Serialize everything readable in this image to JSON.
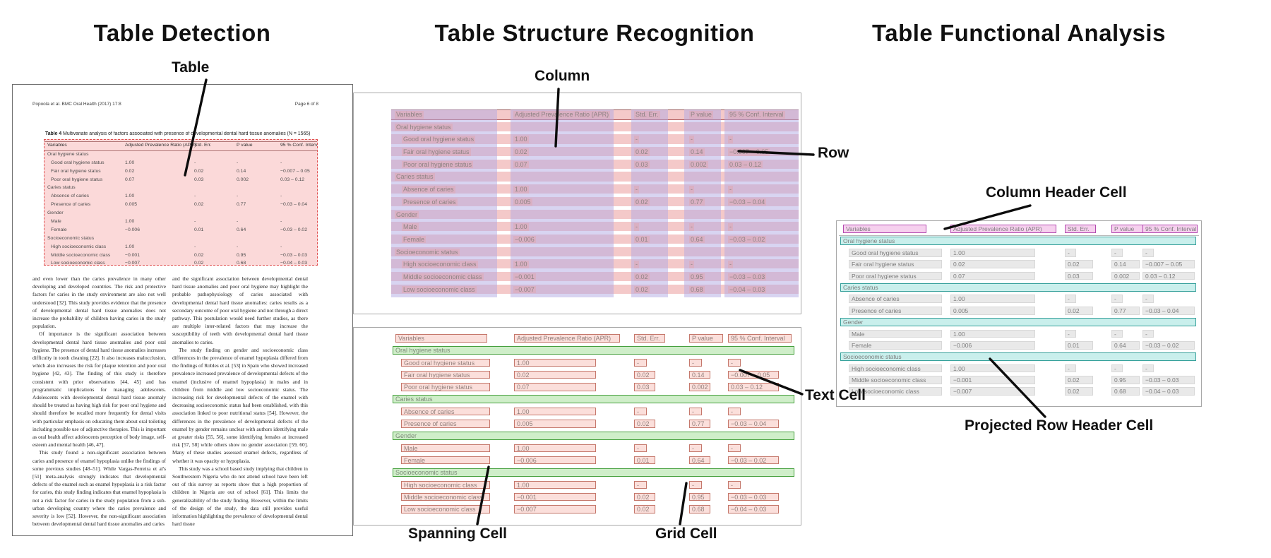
{
  "titles": {
    "detection": "Table Detection",
    "structure": "Table Structure Recognition",
    "functional": "Table Functional Analysis"
  },
  "callouts": {
    "table": "Table",
    "column": "Column",
    "row": "Row",
    "spanning_cell": "Spanning Cell",
    "text_cell": "Text Cell",
    "grid_cell": "Grid Cell",
    "column_header_cell": "Column Header Cell",
    "projected_row_header_cell": "Projected Row Header Cell"
  },
  "document": {
    "header_left": "Popoola et al. BMC Oral Health  (2017) 17:8",
    "header_right": "Page 6 of 8",
    "caption_label": "Table 4",
    "caption_text": " Multivariate analysis of factors associated with presence of developmental dental hard tissue anomalies (N = 1565)",
    "body_col1": [
      "and even lower than the caries prevalence in many other developing and developed countries. The risk and protective factors for caries in the study environment are also not well understood [32]. This study provides evidence that the presence of developmental dental hard tissue anomalies does not increase the probability of children having caries in the study population.",
      "Of importance is the significant association between developmental dental hard tissue anomalies and poor oral hygiene. The presence of dental hard tissue anomalies increases difficulty in tooth cleaning [22]. It also increases malocclusion, which also increases the risk for plaque retention and poor oral hygiene [42, 43]. The finding of this study is therefore consistent with prior observations [44, 45] and has programmatic implications for managing adolescents. Adolescents with developmental dental hard tissue anomaly should be treated as having high risk for poor oral hygiene and should therefore be recalled more frequently for dental visits with particular emphasis on educating them about oral toileting including possible use of adjunctive therapies. This is important as oral health affect adolescents perception of body image, self-esteem and mental health [46, 47].",
      "This study found a non-significant association between caries and presence of enamel hypoplasia unlike the findings of some previous studies [48–51]. While Vargas-Ferreira et al's [51] meta-analysis strongly indicates that developmental defects of the enamel such as enamel hypoplasia is a risk factor for caries, this study finding indicates that enamel hypoplasia is not a risk factor for caries in the study population from a sub-urban developing country where the caries prevalence and severity is low [52]. However, the non-significant association between developmental dental hard tissue anomalies and caries"
    ],
    "body_col2": [
      "and the significant association between developmental dental hard tissue anomalies and poor oral hygiene may highlight the probable pathophysiology of caries associated with developmental dental hard tissue anomalies: caries results as a secondary outcome of poor oral hygiene and not through a direct pathway. This postulation would need further studies, as there are multiple inter-related factors that may increase the susceptibility of teeth with developmental dental hard tissue anomalies to caries.",
      "The study finding on gender and socioeconomic class differences in the prevalence of enamel hypoplasia differed from the findings of Robles et al. [53] in Spain who showed increased prevalence increased prevalence of developmental defects of the enamel (inclusive of enamel hypoplasia) in males and in children from middle and low socioeconomic status. The increasing risk for developmental defects of the enamel with decreasing socioeconomic status had been established, with this association linked to poor nutritional status [54]. However, the differences in the prevalence of developmental defects of the enamel by gender remains unclear with authors identifying male at greater risks [55, 56], some identifying females at increased risk [57, 58] while others show no gender association [59, 60]. Many of these studies assessed enamel defects, regardless of whether it was opacity or hypoplasia.",
      "This study was a school based study implying that children in Southwestern Nigeria who do not attend school have been left out of this survey as reports show that a high proportion of children in Nigeria are out of school [61]. This limits the generalizability of the study finding. However, within the limits of the design of the study, the data still provides useful information highlighting the prevalence of developmental dental hard tissue"
    ]
  },
  "table": {
    "headers": [
      "Variables",
      "Adjusted Prevalence Ratio (APR)",
      "Std. Err.",
      "P value",
      "95 % Conf. Interval"
    ],
    "rows": [
      {
        "t": "sec",
        "label": "Oral hygiene status"
      },
      {
        "t": "d",
        "label": "Good oral hygiene status",
        "v": [
          "1.00",
          "-",
          "-",
          "-"
        ]
      },
      {
        "t": "d",
        "label": "Fair oral hygiene status",
        "v": [
          "0.02",
          "0.02",
          "0.14",
          "−0.007 – 0.05"
        ]
      },
      {
        "t": "d",
        "label": "Poor oral hygiene status",
        "v": [
          "0.07",
          "0.03",
          "0.002",
          "0.03 – 0.12"
        ]
      },
      {
        "t": "sec",
        "label": "Caries status"
      },
      {
        "t": "d",
        "label": "Absence of caries",
        "v": [
          "1.00",
          "-",
          "-",
          "-"
        ]
      },
      {
        "t": "d",
        "label": "Presence of caries",
        "v": [
          "0.005",
          "0.02",
          "0.77",
          "−0.03 – 0.04"
        ]
      },
      {
        "t": "sec",
        "label": "Gender"
      },
      {
        "t": "d",
        "label": "Male",
        "v": [
          "1.00",
          "-",
          "-",
          "-"
        ]
      },
      {
        "t": "d",
        "label": "Female",
        "v": [
          "−0.006",
          "0.01",
          "0.64",
          "−0.03 – 0.02"
        ]
      },
      {
        "t": "sec",
        "label": "Socioeconomic status"
      },
      {
        "t": "d",
        "label": "High socioeconomic class",
        "v": [
          "1.00",
          "-",
          "-",
          "-"
        ]
      },
      {
        "t": "d",
        "label": "Middle socioeconomic class",
        "v": [
          "−0.001",
          "0.02",
          "0.95",
          "−0.03 – 0.03"
        ]
      },
      {
        "t": "d",
        "label": "Low socioeconomic class",
        "v": [
          "−0.007",
          "0.02",
          "0.68",
          "−0.04 – 0.03"
        ]
      }
    ]
  },
  "colors": {
    "detection_box": "#e04f4f",
    "page_table_fill": "#fbd9d9",
    "row_highlight": "#f4c9c9",
    "column_highlight": "#b1aae4",
    "text_cell_fill": "#fbdfdb",
    "text_cell_border": "#c5786c",
    "spanning_cell_fill": "#cfeec9",
    "spanning_cell_border": "#46a03e",
    "column_header_fill": "#f6d0ee",
    "column_header_border": "#b44ab0",
    "projected_row_fill": "#c9efec",
    "projected_row_border": "#35a09a",
    "grid_cell_fill": "#e9e9e9",
    "callout_line": "#0c0c0c"
  }
}
